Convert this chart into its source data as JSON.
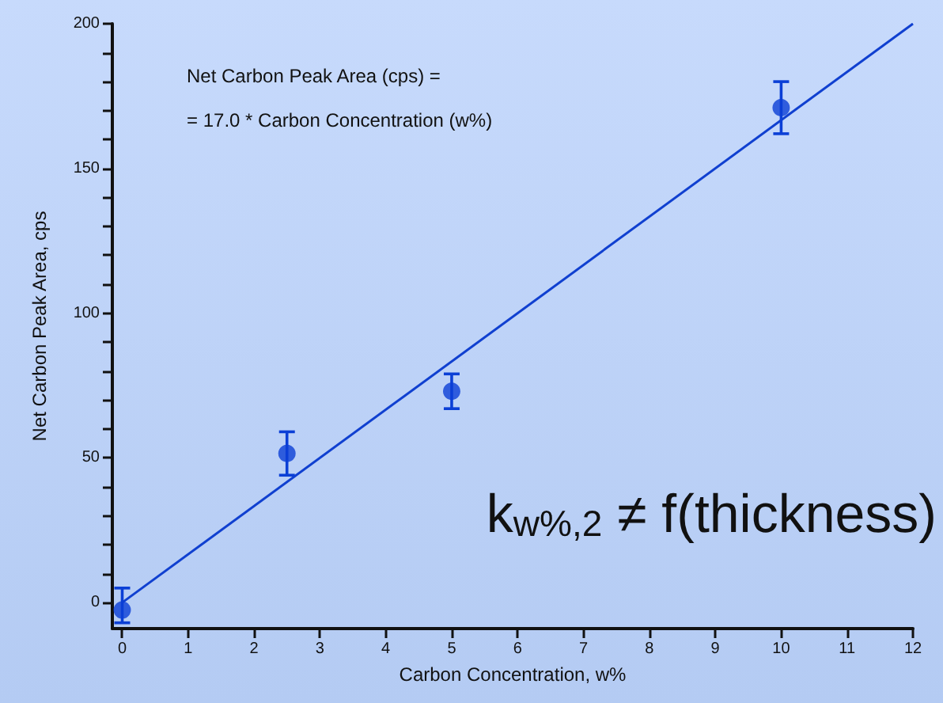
{
  "chart_data": {
    "type": "scatter",
    "xlabel": "Carbon Concentration, w%",
    "ylabel": "Net Carbon Peak Area, cps",
    "annotations": [
      "Net Carbon Peak Area (cps) =",
      "= 17.0 * Carbon Concentration (w%)",
      "k$_{w%,2}$ ≠ f(thickness)"
    ],
    "series": [
      {
        "color": "#0b3fd6",
        "marker": "circle",
        "x": [
          0,
          2.5,
          5,
          10
        ],
        "values": [
          -2.6,
          51.5,
          73,
          171
        ],
        "errors": [
          [
            -7,
            5
          ],
          [
            44,
            59
          ],
          [
            67,
            79
          ],
          [
            162,
            180
          ]
        ]
      },
      {
        "type": "line",
        "color": "#1040d0",
        "marker": "none",
        "line_style": "solid",
        "x": [
          0,
          12
        ],
        "values": [
          0,
          200
        ]
      }
    ],
    "xlim": [
      -0.15,
      12
    ],
    "xticks": [
      0,
      1,
      2,
      3,
      4,
      5,
      6,
      7,
      8,
      9,
      10,
      11,
      12
    ],
    "ylim": [
      -9,
      200
    ],
    "yticks": [
      0,
      {
        "value": 10,
        "label": null
      },
      {
        "value": 20,
        "label": null
      },
      {
        "value": 30,
        "label": null
      },
      {
        "value": 40,
        "label": null
      },
      50,
      {
        "value": 60,
        "label": null
      },
      {
        "value": 70,
        "label": null
      },
      {
        "value": 80,
        "label": null
      },
      {
        "value": 90,
        "label": null
      },
      100,
      {
        "value": 110,
        "label": null
      },
      {
        "value": 120,
        "label": null
      },
      {
        "value": 130,
        "label": null
      },
      {
        "value": 140,
        "label": null
      },
      150,
      {
        "value": 160,
        "label": null
      },
      {
        "value": 170,
        "label": null
      },
      {
        "value": 180,
        "label": null
      },
      {
        "value": 190,
        "label": null
      },
      200
    ],
    "grid": false
  }
}
